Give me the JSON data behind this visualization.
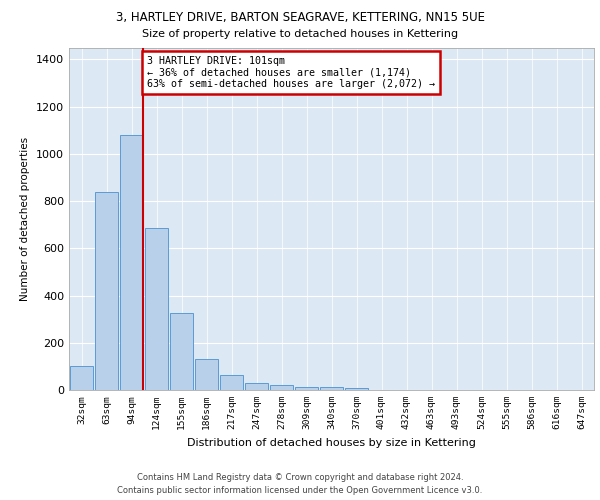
{
  "title_line1": "3, HARTLEY DRIVE, BARTON SEAGRAVE, KETTERING, NN15 5UE",
  "title_line2": "Size of property relative to detached houses in Kettering",
  "xlabel": "Distribution of detached houses by size in Kettering",
  "ylabel": "Number of detached properties",
  "bar_labels": [
    "32sqm",
    "63sqm",
    "94sqm",
    "124sqm",
    "155sqm",
    "186sqm",
    "217sqm",
    "247sqm",
    "278sqm",
    "309sqm",
    "340sqm",
    "370sqm",
    "401sqm",
    "432sqm",
    "463sqm",
    "493sqm",
    "524sqm",
    "555sqm",
    "586sqm",
    "616sqm",
    "647sqm"
  ],
  "bar_values": [
    100,
    840,
    1080,
    685,
    325,
    130,
    65,
    28,
    20,
    12,
    12,
    10,
    0,
    0,
    0,
    0,
    0,
    0,
    0,
    0,
    0
  ],
  "bar_color": "#b8d0ea",
  "bar_edge_color": "#5b9bd5",
  "red_line_index": 2,
  "annotation_text": "3 HARTLEY DRIVE: 101sqm\n← 36% of detached houses are smaller (1,174)\n63% of semi-detached houses are larger (2,072) →",
  "annotation_box_color": "#ffffff",
  "annotation_box_edge": "#cc0000",
  "ylim": [
    0,
    1450
  ],
  "yticks": [
    0,
    200,
    400,
    600,
    800,
    1000,
    1200,
    1400
  ],
  "footer_line1": "Contains HM Land Registry data © Crown copyright and database right 2024.",
  "footer_line2": "Contains public sector information licensed under the Open Government Licence v3.0.",
  "fig_bg_color": "#ffffff",
  "plot_bg_color": "#dde8f5",
  "grid_color": "#ffffff"
}
